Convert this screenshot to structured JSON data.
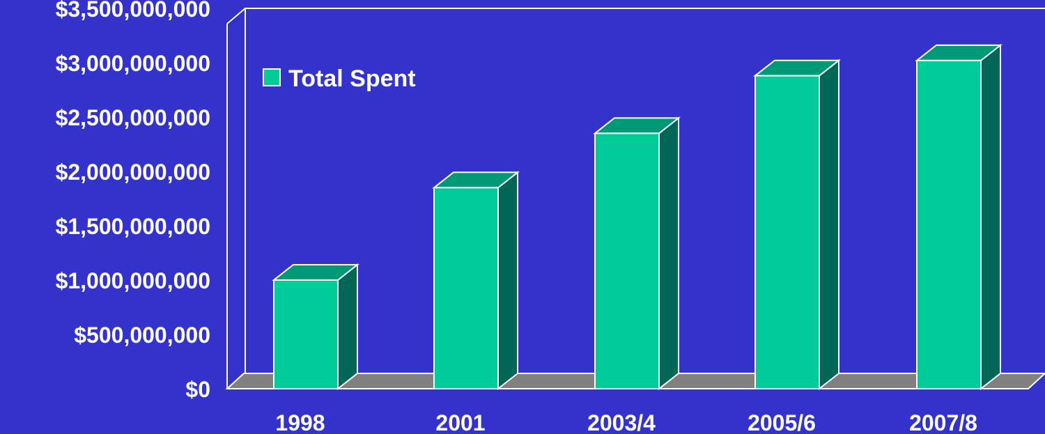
{
  "chart_data": {
    "type": "bar",
    "title": "",
    "xlabel": "",
    "ylabel": "",
    "categories": [
      "1998",
      "2001",
      "2003/4",
      "2005/6",
      "2007/8"
    ],
    "series": [
      {
        "name": "Total Spent",
        "values": [
          1000000000,
          1850000000,
          2350000000,
          2880000000,
          3020000000
        ]
      }
    ],
    "ylim": [
      0,
      3500000000
    ],
    "yticks": [
      0,
      500000000,
      1000000000,
      1500000000,
      2000000000,
      2500000000,
      3000000000,
      3500000000
    ],
    "ytick_labels": [
      "$0",
      "$500,000,000",
      "$1,000,000,000",
      "$1,500,000,000",
      "$2,000,000,000",
      "$2,500,000,000",
      "$3,000,000,000",
      "$3,500,000,000"
    ],
    "grid": false,
    "legend_position": "top-left",
    "style": "3d-bar"
  },
  "colors": {
    "background": "#3333cc",
    "bar_front": "#00cc99",
    "bar_top": "#009977",
    "bar_side": "#006655",
    "floor": "#808080",
    "outline": "#ffffff",
    "text": "#ffffff"
  }
}
